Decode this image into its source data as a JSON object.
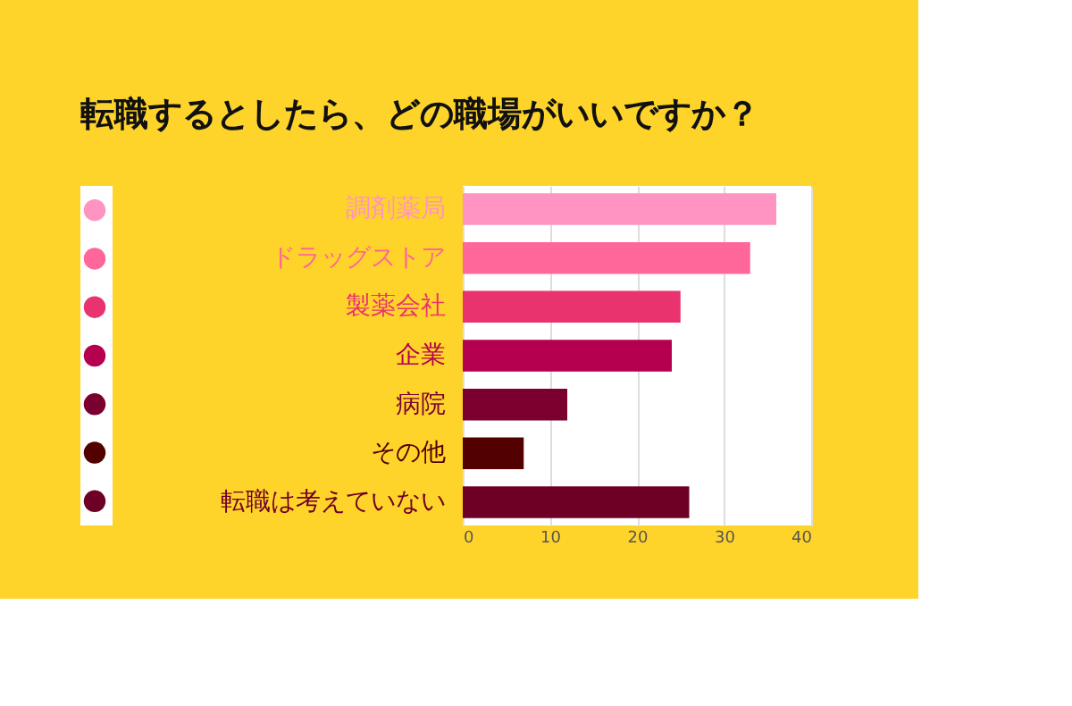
{
  "chart_data": {
    "type": "bar",
    "orientation": "horizontal",
    "title": "転職するとしたら、どの職場がいいですか？",
    "categories": [
      "調剤薬局",
      "ドラッグストア",
      "製薬会社",
      "企業",
      "病院",
      "その他",
      "転職は考えていない"
    ],
    "values": [
      36,
      33,
      25,
      24,
      12,
      7,
      26
    ],
    "colors": [
      "#ff94c2",
      "#ff6699",
      "#e8336f",
      "#b5004f",
      "#7b0030",
      "#520000",
      "#6e0025"
    ],
    "xlim": [
      0,
      40
    ],
    "xticks": [
      0,
      10,
      20,
      30,
      40
    ],
    "grid": "x"
  }
}
